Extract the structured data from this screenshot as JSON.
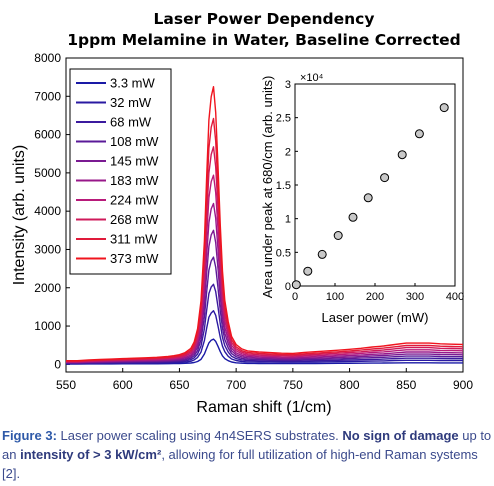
{
  "chart_data": [
    {
      "type": "line",
      "title": "Laser Power Dependency",
      "subtitle": "1ppm Melamine in Water, Baseline Corrected",
      "xlabel": "Raman shift (1/cm)",
      "ylabel": "Intensity (arb. units)",
      "xlim": [
        550,
        900
      ],
      "ylim": [
        -200,
        8000
      ],
      "xticks": [
        "550",
        "600",
        "650",
        "700",
        "750",
        "800",
        "850",
        "900"
      ],
      "yticks": [
        "0",
        "1000",
        "2000",
        "3000",
        "4000",
        "5000",
        "6000",
        "7000",
        "8000"
      ],
      "grid": false,
      "legend_position": "top-left",
      "x": [
        550,
        560,
        570,
        580,
        590,
        600,
        610,
        620,
        630,
        640,
        645,
        650,
        655,
        660,
        663,
        666,
        669,
        672,
        674,
        676,
        678,
        680,
        682,
        684,
        686,
        688,
        690,
        693,
        696,
        700,
        705,
        710,
        720,
        730,
        740,
        750,
        760,
        770,
        780,
        790,
        800,
        810,
        820,
        830,
        840,
        850,
        860,
        870,
        880,
        890,
        900
      ],
      "series": [
        {
          "name": "3.3 mW",
          "color": "#1a1aa6",
          "values": [
            10,
            10,
            12,
            12,
            12,
            14,
            14,
            15,
            15,
            18,
            20,
            22,
            26,
            35,
            48,
            75,
            130,
            270,
            420,
            560,
            630,
            660,
            600,
            470,
            330,
            220,
            150,
            95,
            60,
            40,
            30,
            25,
            22,
            20,
            20,
            20,
            22,
            22,
            24,
            26,
            28,
            30,
            32,
            34,
            38,
            40,
            40,
            40,
            38,
            38,
            38
          ]
        },
        {
          "name": "32 mW",
          "color": "#2a1aa2",
          "values": [
            18,
            18,
            22,
            24,
            26,
            28,
            30,
            32,
            34,
            38,
            42,
            48,
            58,
            80,
            115,
            180,
            320,
            620,
            950,
            1230,
            1340,
            1400,
            1280,
            1000,
            700,
            470,
            330,
            210,
            140,
            100,
            75,
            65,
            60,
            58,
            56,
            55,
            60,
            62,
            66,
            70,
            75,
            80,
            85,
            90,
            100,
            105,
            105,
            105,
            100,
            100,
            100
          ]
        },
        {
          "name": "68 mW",
          "color": "#3b1a9e",
          "values": [
            26,
            26,
            32,
            36,
            40,
            44,
            46,
            48,
            52,
            58,
            64,
            72,
            88,
            120,
            170,
            270,
            480,
            930,
            1420,
            1850,
            2020,
            2090,
            1900,
            1500,
            1050,
            700,
            490,
            320,
            210,
            150,
            115,
            100,
            92,
            88,
            84,
            82,
            90,
            95,
            100,
            106,
            114,
            122,
            130,
            138,
            150,
            160,
            160,
            160,
            155,
            152,
            150
          ]
        },
        {
          "name": "108 mW",
          "color": "#5a1a98",
          "values": [
            35,
            35,
            43,
            48,
            53,
            58,
            62,
            66,
            70,
            78,
            86,
            96,
            118,
            160,
            225,
            360,
            640,
            1240,
            1900,
            2460,
            2700,
            2800,
            2540,
            2000,
            1400,
            940,
            650,
            430,
            280,
            200,
            155,
            135,
            124,
            118,
            112,
            110,
            120,
            126,
            134,
            142,
            152,
            162,
            174,
            184,
            200,
            214,
            214,
            214,
            206,
            202,
            200
          ]
        },
        {
          "name": "145 mW",
          "color": "#7a1a92",
          "values": [
            45,
            45,
            54,
            60,
            66,
            72,
            78,
            82,
            88,
            98,
            108,
            120,
            148,
            200,
            282,
            450,
            800,
            1550,
            2380,
            3080,
            3380,
            3500,
            3180,
            2500,
            1750,
            1170,
            810,
            540,
            350,
            250,
            195,
            170,
            155,
            148,
            140,
            138,
            150,
            158,
            168,
            178,
            190,
            202,
            218,
            230,
            250,
            268,
            268,
            268,
            258,
            254,
            250
          ]
        },
        {
          "name": "183 mW",
          "color": "#98188a",
          "values": [
            54,
            54,
            66,
            73,
            80,
            87,
            94,
            100,
            106,
            118,
            130,
            145,
            178,
            240,
            338,
            540,
            960,
            1860,
            2860,
            3700,
            4060,
            4200,
            3820,
            3000,
            2100,
            1400,
            970,
            650,
            420,
            300,
            234,
            204,
            186,
            178,
            168,
            165,
            180,
            190,
            202,
            214,
            228,
            242,
            262,
            276,
            300,
            322,
            322,
            322,
            310,
            305,
            300
          ]
        },
        {
          "name": "224 mW",
          "color": "#b81a7a",
          "values": [
            64,
            64,
            78,
            86,
            94,
            102,
            110,
            117,
            125,
            139,
            153,
            170,
            209,
            282,
            398,
            635,
            1130,
            2190,
            3360,
            4350,
            4770,
            4940,
            4490,
            3530,
            2470,
            1650,
            1140,
            765,
            495,
            353,
            275,
            240,
            219,
            209,
            198,
            194,
            212,
            224,
            238,
            252,
            268,
            285,
            308,
            325,
            353,
            379,
            379,
            379,
            365,
            359,
            353
          ]
        },
        {
          "name": "268 mW",
          "color": "#cf1a5a",
          "values": [
            74,
            74,
            90,
            99,
            108,
            117,
            126,
            134,
            143,
            160,
            176,
            196,
            240,
            324,
            458,
            730,
            1300,
            2520,
            3860,
            5000,
            5480,
            5680,
            5160,
            4060,
            2840,
            1900,
            1310,
            880,
            570,
            406,
            316,
            276,
            252,
            240,
            228,
            223,
            244,
            258,
            274,
            290,
            308,
            328,
            354,
            374,
            406,
            436,
            436,
            436,
            420,
            413,
            406
          ]
        },
        {
          "name": "311 mW",
          "color": "#e01a3a",
          "values": [
            84,
            84,
            102,
            112,
            122,
            132,
            142,
            151,
            162,
            181,
            199,
            222,
            272,
            367,
            518,
            826,
            1470,
            2850,
            4370,
            5650,
            6190,
            6420,
            5830,
            4590,
            3210,
            2150,
            1480,
            995,
            645,
            459,
            357,
            312,
            285,
            272,
            258,
            252,
            276,
            292,
            310,
            328,
            348,
            371,
            400,
            423,
            459,
            493,
            493,
            493,
            475,
            467,
            459
          ]
        },
        {
          "name": "373 mW",
          "color": "#f0141e",
          "values": [
            95,
            95,
            115,
            127,
            138,
            149,
            160,
            170,
            183,
            204,
            225,
            251,
            307,
            414,
            585,
            932,
            1660,
            3220,
            4930,
            6380,
            6990,
            7250,
            6580,
            5180,
            3620,
            2430,
            1670,
            1120,
            728,
            518,
            403,
            352,
            322,
            307,
            291,
            285,
            312,
            330,
            350,
            370,
            393,
            419,
            452,
            478,
            518,
            556,
            556,
            556,
            536,
            527,
            518
          ]
        }
      ]
    },
    {
      "type": "scatter",
      "xlabel": "Laser power (mW)",
      "ylabel": "Area under peak at 680/cm (arb. units)",
      "y_exponent": "×10⁴",
      "xlim": [
        0,
        400
      ],
      "ylim": [
        0,
        3
      ],
      "xticks": [
        "0",
        "100",
        "200",
        "300",
        "400"
      ],
      "yticks": [
        "0",
        "0.5",
        "1",
        "1.5",
        "2",
        "2.5",
        "3"
      ],
      "grid": false,
      "x": [
        3.3,
        32,
        68,
        108,
        145,
        183,
        224,
        268,
        311,
        373
      ],
      "y": [
        0.02,
        0.22,
        0.47,
        0.75,
        1.02,
        1.31,
        1.61,
        1.95,
        2.26,
        2.65
      ]
    }
  ],
  "caption": {
    "figure_label": "Figure 3:",
    "text_1": " Laser power scaling using 4n4SERS substrates.  ",
    "emphasis_1": "No sign of damage",
    "text_2": " up to an  ",
    "emphasis_2": "intensity of > 3 kW/cm²",
    "text_3": ", allowing for full utilization of high-end Raman systems [2]."
  }
}
